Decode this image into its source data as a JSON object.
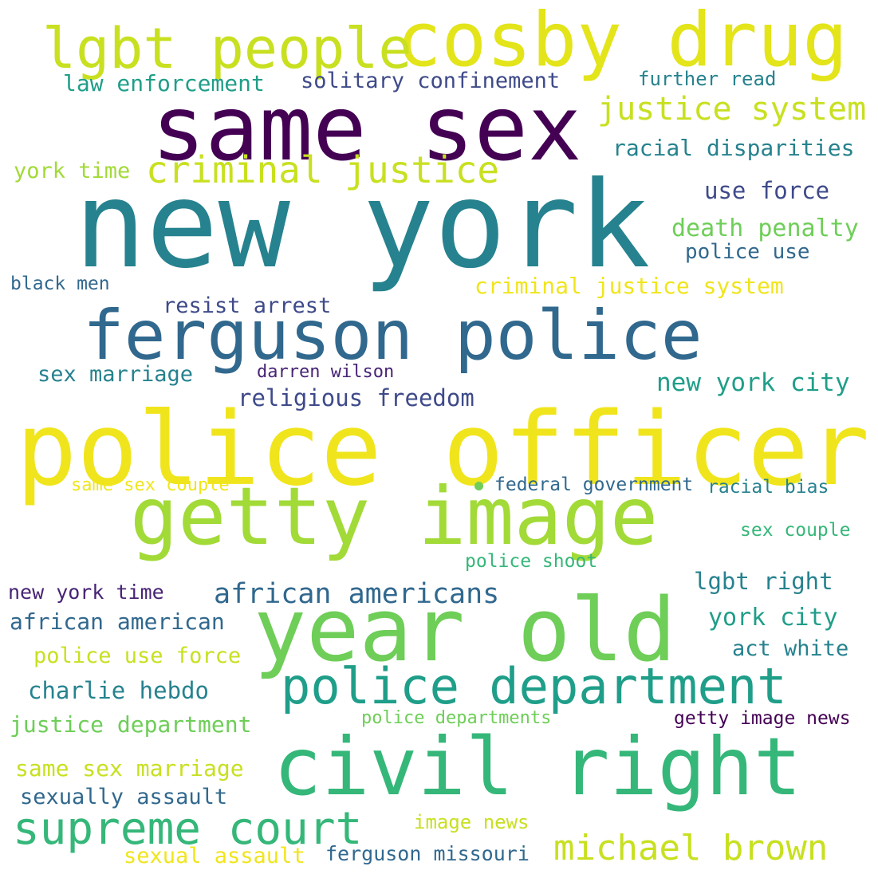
{
  "words": {
    "cosby_drug": "cosby drug",
    "lgbt_people": "lgbt people",
    "same_sex": "same sex",
    "law_enforcement": "law enforcement",
    "solitary_confinement": "solitary confinement",
    "further_read": "further read",
    "justice_system": "justice system",
    "racial_disparities": "racial disparities",
    "criminal_justice": "criminal justice",
    "york_time": "york time",
    "use_force": "use force",
    "new_york": "new york",
    "death_penalty": "death penalty",
    "police_use": "police use",
    "black_men": "black men",
    "criminal_justice_system": "criminal justice system",
    "resist_arrest": "resist arrest",
    "ferguson_police": "ferguson police",
    "sex_marriage": "sex marriage",
    "darren_wilson": "darren wilson",
    "new_york_city": "new york city",
    "religious_freedom": "religious freedom",
    "police_officer": "police officer",
    "same_sex_couple": "same sex couple",
    "federal_government": "federal government",
    "racial_bias": "racial bias",
    "getty_image": "getty image",
    "sex_couple": "sex couple",
    "police_shoot": "police shoot",
    "lgbt_right": "lgbt right",
    "new_york_time": "new york time",
    "african_americans": "african americans",
    "year_old": "year old",
    "york_city": "york city",
    "african_american": "african american",
    "act_white": "act white",
    "police_use_force": "police use force",
    "police_department": "police department",
    "charlie_hebdo": "charlie hebdo",
    "justice_department": "justice department",
    "police_departments": "police departments",
    "getty_image_news": "getty image news",
    "same_sex_marriage": "same sex marriage",
    "civil_right": "civil right",
    "sexually_assault": "sexually assault",
    "supreme_court": "supreme court",
    "image_news": "image news",
    "michael_brown": "michael brown",
    "sexual_assault": "sexual assault",
    "ferguson_missouri": "ferguson missouri"
  }
}
